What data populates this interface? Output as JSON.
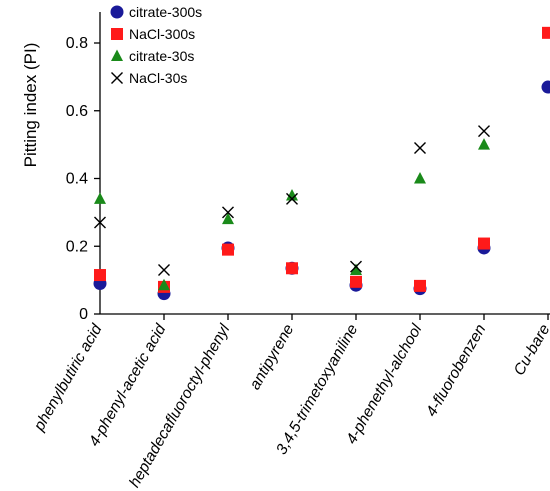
{
  "chart_data": {
    "type": "scatter",
    "title": "",
    "xlabel": "",
    "ylabel": "Pitting index (PI)",
    "ylim": [
      0,
      0.9
    ],
    "yticks": [
      "0",
      "0.2",
      "0.4",
      "0.6",
      "0.8"
    ],
    "ytick_values": [
      0,
      0.2,
      0.4,
      0.6,
      0.8
    ],
    "grid": false,
    "legend_position": "top-left",
    "categories": [
      "phenylbutiric acid",
      "4-phenyl-acetic acid",
      "heptadecafluoroctyl-phenyl",
      "antipyrene",
      "3,4,5-trimetoxyaniline",
      "4-phenethyl-alchool",
      "4-fluorobenzen",
      "Cu-bare"
    ],
    "series": [
      {
        "name": "citrate-300s",
        "marker": "circle",
        "color": "#1a1a99",
        "values": [
          0.09,
          0.06,
          0.195,
          0.135,
          0.085,
          0.075,
          0.195,
          0.67
        ]
      },
      {
        "name": "NaCl-300s",
        "marker": "square",
        "color": "#ff1a1a",
        "values": [
          0.115,
          0.08,
          0.19,
          0.135,
          0.095,
          0.083,
          0.208,
          0.83
        ]
      },
      {
        "name": "citrate-30s",
        "marker": "triangle",
        "color": "#1a8a1a",
        "values": [
          0.34,
          0.085,
          0.28,
          0.35,
          0.13,
          0.4,
          0.5,
          null
        ]
      },
      {
        "name": "NaCl-30s",
        "marker": "x",
        "color": "#000000",
        "values": [
          0.27,
          0.13,
          0.3,
          0.34,
          0.14,
          0.49,
          0.54,
          null
        ]
      }
    ]
  }
}
